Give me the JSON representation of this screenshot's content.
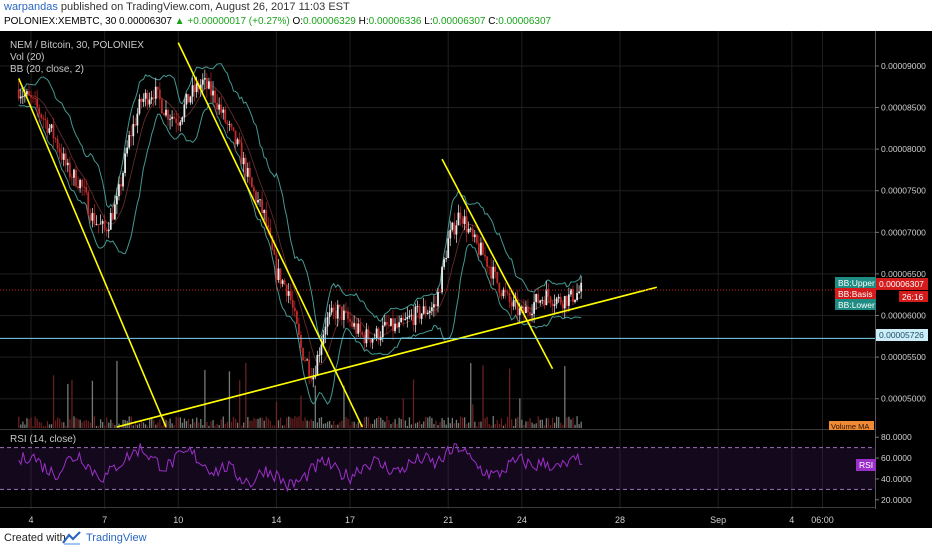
{
  "header": {
    "author": "warpandas",
    "published": "published on TradingView.com, August 26, 2017 11:03 EST",
    "symbol": "POLONIEX:XEMBTC, 30",
    "last": "0.00006307",
    "change": "+0.00000017 (+0.27%)",
    "o_label": "O:",
    "o": "0.00006329",
    "h_label": "H:",
    "h": "0.00006336",
    "l_label": "L:",
    "l": "0.00006307",
    "c_label": "C:",
    "c": "0.00006307"
  },
  "footer": {
    "created_with": "Created with",
    "brand": "TradingView"
  },
  "colors": {
    "background": "#000000",
    "grid": "#1f1f1f",
    "trendline": "#ffff00",
    "bb_band": "#4fb3a9",
    "rsi": "#9b30c8",
    "support": "#7fd3ee",
    "price_tag": "#d31b1b",
    "up": "#eaeaea",
    "down": "#c02a2a"
  },
  "chart_data": [
    {
      "type": "candlestick",
      "legend": [
        "NEM / Bitcoin, 30, POLONIEX",
        "Vol (20)",
        "BB (20, close, 2)"
      ],
      "x_ticks": [
        "4",
        "7",
        "10",
        "14",
        "17",
        "21",
        "24",
        "28",
        "Sep",
        "4",
        "06:00"
      ],
      "y_ticks": [
        "0.00009000",
        "0.00008500",
        "0.00008000",
        "0.00007500",
        "0.00007000",
        "0.00006500",
        "0.00006000",
        "0.00005500",
        "0.00005000"
      ],
      "ylim": [
        4.66e-05,
        9.42e-05
      ],
      "close_path": [
        [
          "Aug 3 12:00",
          8.72e-05
        ],
        [
          "Aug 4 00:00",
          8.58e-05
        ],
        [
          "Aug 4 12:00",
          8.38e-05
        ],
        [
          "Aug 5 00:00",
          8.12e-05
        ],
        [
          "Aug 5 12:00",
          7.74e-05
        ],
        [
          "Aug 6 00:00",
          7.6e-05
        ],
        [
          "Aug 6 12:00",
          7.18e-05
        ],
        [
          "Aug 7 00:00",
          7.02e-05
        ],
        [
          "Aug 7 12:00",
          7.35e-05
        ],
        [
          "Aug 8 00:00",
          8.12e-05
        ],
        [
          "Aug 8 12:00",
          8.58e-05
        ],
        [
          "Aug 9 00:00",
          8.7e-05
        ],
        [
          "Aug 9 12:00",
          8.45e-05
        ],
        [
          "Aug 10 00:00",
          8.36e-05
        ],
        [
          "Aug 10 12:00",
          8.65e-05
        ],
        [
          "Aug 11 00:00",
          8.8e-05
        ],
        [
          "Aug 11 12:00",
          8.62e-05
        ],
        [
          "Aug 12 00:00",
          8.28e-05
        ],
        [
          "Aug 12 12:00",
          7.98e-05
        ],
        [
          "Aug 13 00:00",
          7.52e-05
        ],
        [
          "Aug 13 12:00",
          7.2e-05
        ],
        [
          "Aug 14 00:00",
          6.52e-05
        ],
        [
          "Aug 14 12:00",
          6.3e-05
        ],
        [
          "Aug 15 00:00",
          5.6e-05
        ],
        [
          "Aug 15 12:00",
          5.28e-05
        ],
        [
          "Aug 16 00:00",
          5.92e-05
        ],
        [
          "Aug 16 12:00",
          6.06e-05
        ],
        [
          "Aug 17 00:00",
          5.92e-05
        ],
        [
          "Aug 17 12:00",
          5.75e-05
        ],
        [
          "Aug 18 00:00",
          5.75e-05
        ],
        [
          "Aug 18 12:00",
          5.86e-05
        ],
        [
          "Aug 19 00:00",
          5.85e-05
        ],
        [
          "Aug 19 12:00",
          5.98e-05
        ],
        [
          "Aug 20 00:00",
          6.05e-05
        ],
        [
          "Aug 20 12:00",
          6.12e-05
        ],
        [
          "Aug 21 00:00",
          6.9e-05
        ],
        [
          "Aug 21 12:00",
          7.25e-05
        ],
        [
          "Aug 22 00:00",
          6.9e-05
        ],
        [
          "Aug 22 12:00",
          6.7e-05
        ],
        [
          "Aug 23 00:00",
          6.4e-05
        ],
        [
          "Aug 23 12:00",
          6.15e-05
        ],
        [
          "Aug 24 00:00",
          6.02e-05
        ],
        [
          "Aug 24 12:00",
          6.15e-05
        ],
        [
          "Aug 25 00:00",
          6.25e-05
        ],
        [
          "Aug 25 12:00",
          6.18e-05
        ],
        [
          "Aug 26 00:00",
          6.22e-05
        ],
        [
          "Aug 26 11:00",
          6.31e-05
        ]
      ],
      "trendlines": [
        {
          "name": "falling-trendline-1",
          "from": [
            "Aug 3 12:00",
            8.85e-05
          ],
          "to": [
            "Aug 9 12:00",
            4.66e-05
          ]
        },
        {
          "name": "falling-trendline-2",
          "from": [
            "Aug 10 00:00",
            9.28e-05
          ],
          "to": [
            "Aug 17 12:00",
            4.66e-05
          ]
        },
        {
          "name": "falling-trendline-3",
          "from": [
            "Aug 20 18:00",
            7.88e-05
          ],
          "to": [
            "Aug 25 06:00",
            5.36e-05
          ]
        },
        {
          "name": "rising-trendline",
          "from": [
            "Aug 7 12:00",
            4.66e-05
          ],
          "to": [
            "Aug 29 12:00",
            6.34e-05
          ]
        }
      ],
      "support_level": 5.726e-05,
      "last_price": 6.307e-05,
      "bb_upper": 6.46e-05,
      "bb_basis": 6.18e-05,
      "bb_lower": 6.02e-05,
      "price_labels": {
        "bb_upper": "BB:Upper",
        "last": "0.00006307",
        "bb_basis": "BB:Basis",
        "countdown": "26:16",
        "bb_lower": "BB:Lower",
        "support": "0.00005726",
        "volume_ma": "Volume MA"
      }
    },
    {
      "type": "line",
      "legend": "RSI (14, close)",
      "y_ticks": [
        "80.0000",
        "60.0000",
        "40.0000",
        "20.0000"
      ],
      "ylim": [
        15,
        85
      ],
      "bands": [
        70,
        30
      ],
      "badge": "RSI",
      "values": [
        56,
        64,
        52,
        44,
        58,
        63,
        48,
        41,
        53,
        62,
        70,
        58,
        51,
        60,
        66,
        55,
        47,
        52,
        42,
        36,
        49,
        44,
        33,
        38,
        49,
        57,
        47,
        42,
        52,
        57,
        51,
        47,
        55,
        60,
        54,
        64,
        71,
        57,
        47,
        43,
        53,
        58,
        52,
        56,
        50,
        55,
        60
      ]
    }
  ]
}
